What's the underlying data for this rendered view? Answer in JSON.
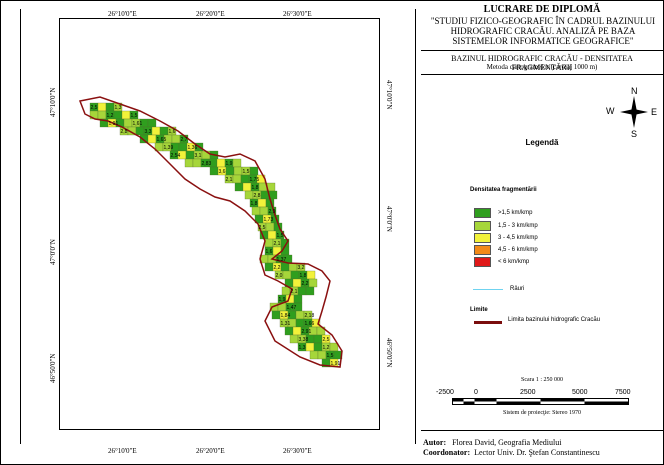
{
  "panel": {
    "title": "LUCRARE DE DIPLOMĂ",
    "subtitle": "\"STUDIU FIZICO-GEOGRAFIC ÎN CADRUL BAZINULUI HIDROGRAFIC CRACĂU. ANALIZĂ PE BAZA SISTEMELOR INFORMATICE GEOGRAFICE\"",
    "map_name": "BAZINUL HIDROGRAFIC CRACĂU - DENSITATEA FRAGMENTĂRII",
    "method": "Metoda cartogramelor (caroiaj 1000 m)",
    "compass": {
      "n": "N",
      "s": "S",
      "e": "E",
      "w": "W"
    },
    "legend_title": "Legendă",
    "density_title": "Densitatea fragmentării",
    "legend_items": [
      {
        "label": ">1,5 km/kmp",
        "color": "#2f9e1e"
      },
      {
        "label": "1,5 - 3 km/kmp",
        "color": "#a6d63a"
      },
      {
        "label": "3 - 4,5 km/kmp",
        "color": "#f2f23a"
      },
      {
        "label": "4,5 - 6 km/kmp",
        "color": "#f28a18"
      },
      {
        "label": "< 6 km/kmp",
        "color": "#e01818"
      }
    ],
    "rivers_label": "Râuri",
    "limits_title": "Limite",
    "limit_label": "Limita bazinului hidrografic Cracău",
    "scale_text": "Scara 1 : 250 000",
    "scale_labels": [
      "-2500",
      "0",
      "2500",
      "5000",
      "7500"
    ],
    "projection": "Sistem de proiecţie: Stereo 1970",
    "author_label": "Autor:",
    "author_value": "Florea David, Geografia Mediului",
    "coord_label": "Coordonator:",
    "coord_value": "Lector Univ. Dr. Ştefan Constantinescu"
  },
  "map": {
    "lon_ticks": [
      "26°10'0\"E",
      "26°20'0\"E",
      "26°30'0\"E"
    ],
    "lat_ticks": [
      "47°10'0\"N",
      "47°0'0\"N",
      "46°50'0\"N"
    ],
    "cell_values": [
      "2,5",
      "1,3",
      "1,2",
      "1,5",
      "1,91",
      "1,61",
      "2,8",
      "3,3",
      "1,6",
      "1,65",
      "2,7",
      "1,39",
      "1,36",
      "2,54",
      "3,1",
      "2,83",
      "1,9",
      "3,6",
      "1,5",
      "2,1",
      "1,75",
      "1,8",
      "2,8",
      "1,8",
      "2,9",
      "1,73",
      "2,5",
      "1,5",
      "2,1",
      "1,6",
      "1,37",
      "2,2",
      "3,2",
      "2,0",
      "1,8",
      "2,2",
      "2,1",
      "1,9",
      "1,47",
      "1,84",
      "2,18",
      "1,31",
      "1,66",
      "2,91",
      "3,38"
    ]
  }
}
